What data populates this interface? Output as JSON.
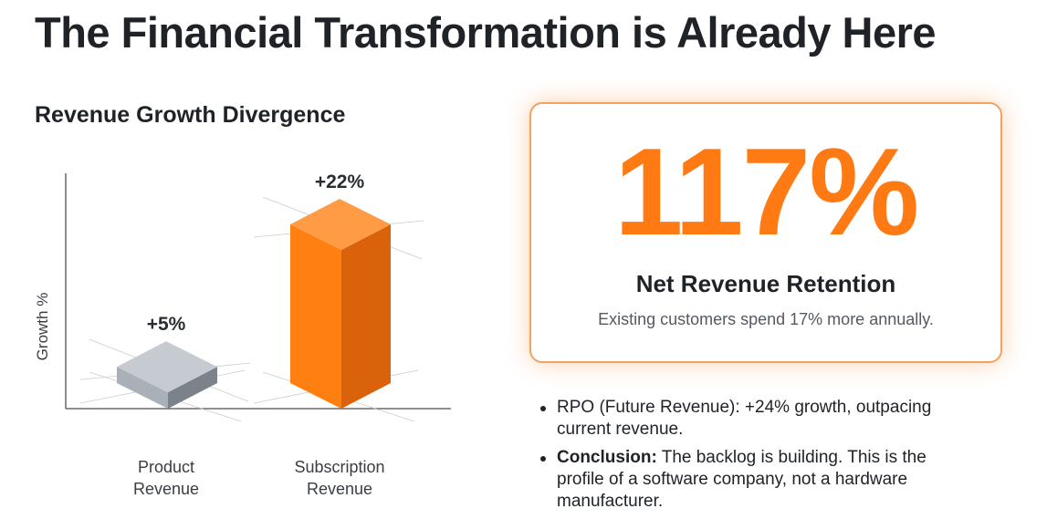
{
  "page": {
    "title": "The Financial Transformation is Already Here"
  },
  "chart_data": {
    "type": "bar",
    "title": "Revenue Growth Divergence",
    "xlabel": "",
    "ylabel": "Growth %",
    "categories": [
      "Product\nRevenue",
      "Subscription\nRevenue"
    ],
    "values": [
      5,
      22
    ],
    "data_labels": [
      "+5%",
      "+22%"
    ],
    "ylim": [
      0,
      22
    ],
    "grid": false,
    "style": "3d-isometric",
    "colors": {
      "product": "#9ca1a8",
      "subscription": "#ff7f11"
    }
  },
  "metric": {
    "value": "117%",
    "label": "Net Revenue Retention",
    "subtext": "Existing customers spend 17% more annually.",
    "accent_color": "#ff7a12"
  },
  "bullets": [
    {
      "bold": "",
      "text": "RPO (Future Revenue): +24% growth, outpacing current revenue."
    },
    {
      "bold": "Conclusion:",
      "text": " The backlog is building. This is the profile of a software company, not a hardware manufacturer."
    }
  ]
}
